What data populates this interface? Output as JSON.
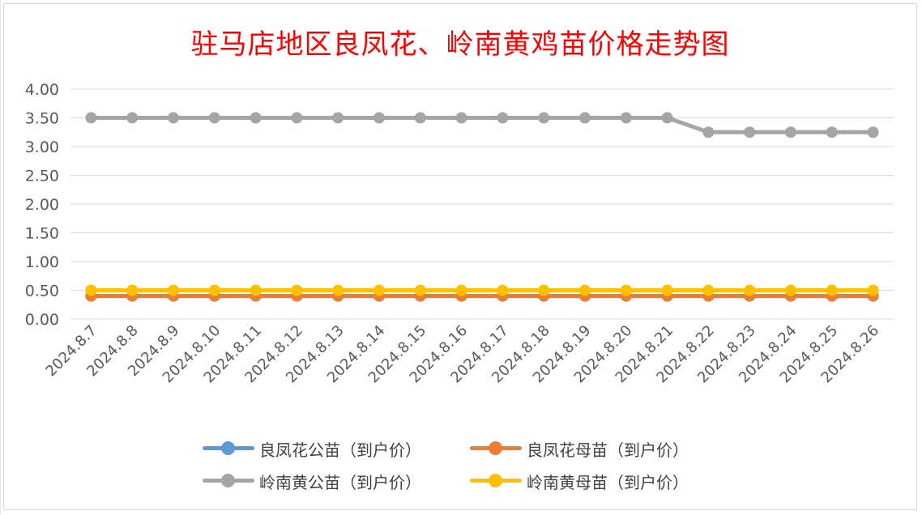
{
  "chart_data": {
    "type": "line",
    "title": "驻马店地区良凤花、岭南黄鸡苗价格走势图",
    "xlabel": "",
    "ylabel": "",
    "ylim": [
      0,
      4
    ],
    "y_ticks": [
      "0.00",
      "0.50",
      "1.00",
      "1.50",
      "2.00",
      "2.50",
      "3.00",
      "3.50",
      "4.00"
    ],
    "categories": [
      "2024.8.7",
      "2024.8.8",
      "2024.8.9",
      "2024.8.10",
      "2024.8.11",
      "2024.8.12",
      "2024.8.13",
      "2024.8.14",
      "2024.8.15",
      "2024.8.16",
      "2024.8.17",
      "2024.8.18",
      "2024.8.19",
      "2024.8.20",
      "2024.8.21",
      "2024.8.22",
      "2024.8.23",
      "2024.8.24",
      "2024.8.25",
      "2024.8.26"
    ],
    "grid": true,
    "legend_position": "bottom",
    "series": [
      {
        "name": "良凤花公苗（到户价）",
        "color": "#5b9bd5",
        "values": [
          0.4,
          0.4,
          0.4,
          0.4,
          0.4,
          0.4,
          0.4,
          0.4,
          0.4,
          0.4,
          0.4,
          0.4,
          0.4,
          0.4,
          0.4,
          0.4,
          0.4,
          0.4,
          0.4,
          0.4
        ]
      },
      {
        "name": "良凤花母苗（到户价）",
        "color": "#ed7d31",
        "values": [
          0.4,
          0.4,
          0.4,
          0.4,
          0.4,
          0.4,
          0.4,
          0.4,
          0.4,
          0.4,
          0.4,
          0.4,
          0.4,
          0.4,
          0.4,
          0.4,
          0.4,
          0.4,
          0.4,
          0.4
        ]
      },
      {
        "name": "岭南黄公苗（到户价）",
        "color": "#a5a5a5",
        "values": [
          3.5,
          3.5,
          3.5,
          3.5,
          3.5,
          3.5,
          3.5,
          3.5,
          3.5,
          3.5,
          3.5,
          3.5,
          3.5,
          3.5,
          3.5,
          3.25,
          3.25,
          3.25,
          3.25,
          3.25
        ]
      },
      {
        "name": "岭南黄母苗（到户价）",
        "color": "#ffc000",
        "values": [
          0.5,
          0.5,
          0.5,
          0.5,
          0.5,
          0.5,
          0.5,
          0.5,
          0.5,
          0.5,
          0.5,
          0.5,
          0.5,
          0.5,
          0.5,
          0.5,
          0.5,
          0.5,
          0.5,
          0.5
        ]
      }
    ]
  }
}
